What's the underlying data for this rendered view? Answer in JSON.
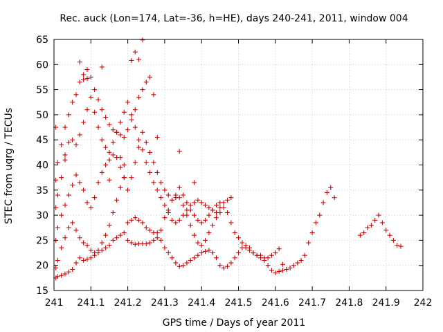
{
  "chart_data": {
    "type": "scatter",
    "title": "Rec. auck (Lon=174, Lat=-36, h=HE), days 240-241, 2011, window 004",
    "xlabel": "GPS time / Days of year 2011",
    "ylabel": "STEC from uqrg / TECUs",
    "xlim": [
      241,
      242
    ],
    "ylim": [
      15,
      65
    ],
    "xticks": [
      241,
      241.1,
      241.2,
      241.3,
      241.4,
      241.5,
      241.6,
      241.7,
      241.8,
      241.9,
      242
    ],
    "xtick_labels": [
      "241",
      "241.1",
      "241.2",
      "241.3",
      "241.4",
      "241.5",
      "241.6",
      "241.7",
      "241.8",
      "241.9",
      "242"
    ],
    "yticks": [
      15,
      20,
      25,
      30,
      35,
      40,
      45,
      50,
      55,
      60,
      65
    ],
    "ytick_labels": [
      "15",
      "20",
      "25",
      "30",
      "35",
      "40",
      "45",
      "50",
      "55",
      "60",
      "65"
    ],
    "grid": true,
    "marker": "plus",
    "color": "#cc0000",
    "series": [
      {
        "x": [
          241.005,
          241.01,
          241.02,
          241.03,
          241.04,
          241.05,
          241.06,
          241.07,
          241.08,
          241.09,
          241.1,
          241.11,
          241.12,
          241.13,
          241.14,
          241.15,
          241.16,
          241.17,
          241.18,
          241.19,
          241.2,
          241.21,
          241.22,
          241.23,
          241.24,
          241.25,
          241.26,
          241.27,
          241.28,
          241.29,
          241.3,
          241.31,
          241.32,
          241.33,
          241.34,
          241.35,
          241.36,
          241.37,
          241.38,
          241.39,
          241.4,
          241.41,
          241.42,
          241.43,
          241.44,
          241.45,
          241.46,
          241.47,
          241.48,
          241.49,
          241.5,
          241.51,
          241.52,
          241.53,
          241.54,
          241.55,
          241.56,
          241.57,
          241.58,
          241.59,
          241.6,
          241.61,
          241.62,
          241.63,
          241.64,
          241.65,
          241.66,
          241.67,
          241.68,
          241.69,
          241.7,
          241.71,
          241.72,
          241.73,
          241.74,
          241.75,
          241.76,
          241.83,
          241.84,
          241.85,
          241.86,
          241.87,
          241.88,
          241.89,
          241.9,
          241.91,
          241.92,
          241.93,
          241.94
        ],
        "y": [
          17.5,
          17.8,
          18.0,
          18.3,
          18.7,
          19.2,
          20.5,
          21.5,
          21.0,
          21.2,
          21.5,
          22.0,
          22.5,
          23.0,
          23.5,
          24.0,
          25.0,
          25.5,
          26.0,
          26.5,
          25.0,
          24.5,
          24.2,
          24.3,
          24.3,
          24.3,
          24.5,
          25.0,
          25.5,
          25.0,
          23.5,
          22.5,
          21.5,
          20.5,
          19.8,
          20.0,
          20.5,
          21.0,
          21.5,
          22.0,
          22.5,
          22.8,
          23.0,
          22.5,
          21.5,
          20.0,
          19.5,
          19.8,
          20.5,
          21.5,
          22.5,
          23.5,
          24.0,
          23.5,
          22.5,
          22.0,
          22.0,
          21.5,
          20.0,
          19.0,
          18.5,
          18.8,
          19.0,
          19.2,
          19.5,
          20.0,
          20.5,
          21.0,
          22.0,
          24.5,
          26.5,
          28.5,
          30.0,
          32.5,
          34.5,
          35.5,
          33.5,
          26.0,
          26.5,
          27.5,
          28.0,
          29.0,
          30.0,
          28.5,
          27.0,
          26.0,
          25.0,
          24.0,
          23.8
        ]
      },
      {
        "x": [
          241.005,
          241.01,
          241.02,
          241.03,
          241.04,
          241.05,
          241.06,
          241.07,
          241.08,
          241.09,
          241.1,
          241.11,
          241.12,
          241.13,
          241.14,
          241.15,
          241.16,
          241.17,
          241.18,
          241.19,
          241.2,
          241.21,
          241.22,
          241.23,
          241.24,
          241.25,
          241.26,
          241.27,
          241.28,
          241.29,
          241.3,
          241.31,
          241.32,
          241.33,
          241.34,
          241.35,
          241.36,
          241.37,
          241.38,
          241.39,
          241.4,
          241.41,
          241.42,
          241.43,
          241.44,
          241.45,
          241.46,
          241.47,
          241.48,
          241.49,
          241.5,
          241.51,
          241.52,
          241.53,
          241.54,
          241.55,
          241.56,
          241.57,
          241.58,
          241.59,
          241.6,
          241.61,
          241.62
        ],
        "y": [
          19.5,
          21.0,
          23.5,
          25.5,
          27.5,
          28.5,
          27.0,
          25.5,
          24.5,
          24.0,
          23.0,
          22.5,
          23.0,
          24.5,
          26.0,
          28.0,
          30.5,
          33.0,
          35.5,
          37.5,
          28.5,
          29.0,
          29.5,
          29.0,
          28.5,
          27.5,
          27.0,
          26.5,
          26.5,
          27.0,
          29.5,
          31.0,
          33.0,
          33.5,
          33.5,
          32.0,
          30.0,
          28.0,
          26.0,
          24.5,
          24.0,
          25.0,
          26.5,
          28.0,
          29.5,
          30.5,
          31.5,
          30.5,
          28.5,
          26.5,
          25.5,
          24.5,
          23.5,
          23.0,
          22.5,
          22.0,
          21.5,
          21.0,
          21.5,
          22.0,
          22.5,
          23.3,
          20.2
        ]
      },
      {
        "x": [
          241.005,
          241.01,
          241.02,
          241.03,
          241.04,
          241.05,
          241.06,
          241.07,
          241.08,
          241.09,
          241.1,
          241.11,
          241.12,
          241.13,
          241.14,
          241.15,
          241.16,
          241.17,
          241.18,
          241.19,
          241.2,
          241.21,
          241.22,
          241.23,
          241.24,
          241.25,
          241.26,
          241.27,
          241.28,
          241.29,
          241.3,
          241.31,
          241.32,
          241.33,
          241.34,
          241.35,
          241.36,
          241.37,
          241.38,
          241.39,
          241.4,
          241.41,
          241.42,
          241.43,
          241.44,
          241.45,
          241.46,
          241.47,
          241.48
        ],
        "y": [
          25.0,
          27.5,
          30.0,
          32.0,
          34.0,
          36.0,
          38.0,
          36.5,
          35.0,
          32.5,
          31.5,
          33.5,
          36.5,
          38.5,
          40.0,
          41.0,
          42.0,
          41.5,
          39.5,
          37.5,
          35.0,
          37.5,
          40.5,
          43.5,
          46.5,
          44.5,
          42.5,
          40.5,
          38.5,
          36.5,
          35.0,
          34.0,
          33.0,
          34.0,
          35.5,
          34.0,
          32.5,
          31.0,
          30.0,
          29.0,
          28.5,
          29.0,
          30.0,
          31.0,
          32.0,
          32.5,
          32.5,
          33.0,
          33.5
        ]
      },
      {
        "x": [
          241.005,
          241.01,
          241.02,
          241.03,
          241.04,
          241.05,
          241.06,
          241.07,
          241.08,
          241.09,
          241.1,
          241.11,
          241.12,
          241.13,
          241.14,
          241.15,
          241.16,
          241.17,
          241.18,
          241.19,
          241.2,
          241.21,
          241.22,
          241.23,
          241.24,
          241.25,
          241.26,
          241.27,
          241.28,
          241.29,
          241.3,
          241.31,
          241.32,
          241.33,
          241.34,
          241.35,
          241.36,
          241.37,
          241.38,
          241.39,
          241.4,
          241.41,
          241.42,
          241.43,
          241.44,
          241.45
        ],
        "y": [
          31.5,
          34.0,
          37.5,
          41.0,
          44.5,
          45.0,
          44.0,
          46.0,
          48.5,
          51.0,
          53.5,
          50.5,
          47.5,
          45.0,
          43.5,
          42.5,
          44.5,
          46.5,
          48.5,
          50.5,
          52.5,
          50.0,
          47.5,
          45.0,
          43.0,
          40.5,
          38.5,
          36.5,
          35.0,
          33.5,
          32.0,
          30.5,
          29.0,
          28.5,
          29.0,
          30.0,
          31.0,
          32.0,
          32.5,
          33.0,
          32.5,
          32.0,
          31.5,
          31.0,
          30.5,
          31.5
        ]
      },
      {
        "x": [
          241.005,
          241.01,
          241.02,
          241.03,
          241.04,
          241.05,
          241.06,
          241.07,
          241.08,
          241.09,
          241.1,
          241.11,
          241.12,
          241.13,
          241.14,
          241.15,
          241.16,
          241.17,
          241.18,
          241.19,
          241.2,
          241.21,
          241.22,
          241.23,
          241.24,
          241.25,
          241.26,
          241.27,
          241.28
        ],
        "y": [
          37.0,
          40.5,
          44.0,
          47.5,
          50.0,
          52.5,
          54.0,
          56.5,
          58.0,
          59.0,
          57.5,
          55.0,
          53.0,
          51.0,
          49.5,
          48.0,
          47.0,
          46.5,
          46.0,
          45.5,
          47.0,
          49.0,
          51.0,
          53.5,
          55.0,
          56.5,
          57.5,
          54.0,
          45.5
        ]
      },
      {
        "x": [
          241.005,
          241.03,
          241.08,
          241.13,
          241.18,
          241.23,
          241.34,
          241.38,
          241.07,
          241.21,
          241.19,
          241.22,
          241.24,
          241.09,
          241.15
        ],
        "y": [
          47.5,
          42.0,
          57.0,
          59.5,
          41.5,
          61.0,
          42.7,
          36.5,
          60.5,
          60.8,
          40.0,
          62.5,
          64.9,
          57.2,
          37.0
        ]
      }
    ]
  }
}
